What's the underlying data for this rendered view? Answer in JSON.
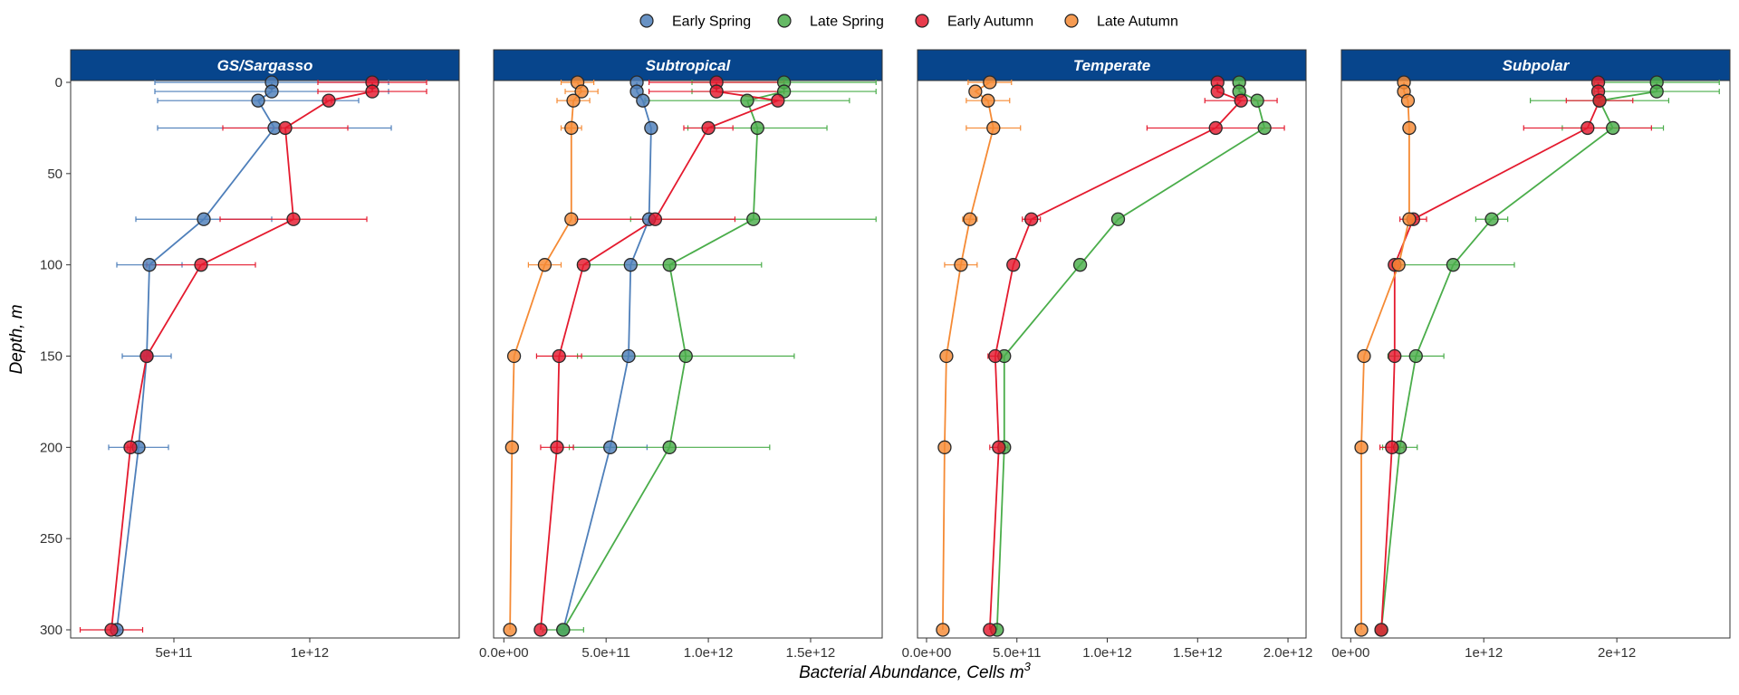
{
  "chart_data": {
    "type": "line",
    "legend_position": "top",
    "xlabel": "Bacterial Abundance, Cells m",
    "xlabel_sup": "3",
    "ylabel": "Depth, m",
    "y_reversed": true,
    "ylim": [
      0,
      300
    ],
    "yticks": [
      0,
      50,
      100,
      150,
      200,
      250,
      300
    ],
    "ytick_labels": [
      "0",
      "50",
      "100",
      "150",
      "200",
      "250",
      "300"
    ],
    "grid": false,
    "legend": [
      {
        "name": "Early Spring",
        "color": "#4e7fba"
      },
      {
        "name": "Late Spring",
        "color": "#4aad4a"
      },
      {
        "name": "Early Autumn",
        "color": "#e41a2e"
      },
      {
        "name": "Late Autumn",
        "color": "#f58a34"
      }
    ],
    "panels": [
      {
        "title": "GS/Sargasso",
        "xlim": [
          120000000000.0,
          1550000000000.0
        ],
        "xticks": [
          500000000000.0,
          1000000000000.0
        ],
        "xtick_labels": [
          "5e+11",
          "1e+12"
        ],
        "series": [
          {
            "name": "Early Spring",
            "points": [
              {
                "x": 860000000000.0,
                "y": 0,
                "err": 430000000000.0
              },
              {
                "x": 860000000000.0,
                "y": 5,
                "err": 430000000000.0
              },
              {
                "x": 810000000000.0,
                "y": 10,
                "err": 370000000000.0
              },
              {
                "x": 870000000000.0,
                "y": 25,
                "err": 430000000000.0
              },
              {
                "x": 610000000000.0,
                "y": 75,
                "err": 250000000000.0
              },
              {
                "x": 410000000000.0,
                "y": 100,
                "err": 120000000000.0
              },
              {
                "x": 400000000000.0,
                "y": 150,
                "err": 90000000000.0
              },
              {
                "x": 370000000000.0,
                "y": 200,
                "err": 110000000000.0
              },
              {
                "x": 290000000000.0,
                "y": 300,
                "err": 10000000000.0
              }
            ]
          },
          {
            "name": "Early Autumn",
            "points": [
              {
                "x": 1230000000000.0,
                "y": 0,
                "err": 200000000000.0
              },
              {
                "x": 1230000000000.0,
                "y": 5,
                "err": 200000000000.0
              },
              {
                "x": 1070000000000.0,
                "y": 10,
                "err": 10000000000.0
              },
              {
                "x": 910000000000.0,
                "y": 25,
                "err": 230000000000.0
              },
              {
                "x": 940000000000.0,
                "y": 75,
                "err": 270000000000.0
              },
              {
                "x": 600000000000.0,
                "y": 100,
                "err": 200000000000.0
              },
              {
                "x": 400000000000.0,
                "y": 150,
                "err": 10000000000.0
              },
              {
                "x": 340000000000.0,
                "y": 200,
                "err": 10000000000.0
              },
              {
                "x": 270000000000.0,
                "y": 300,
                "err": 115000000000.0
              }
            ]
          }
        ]
      },
      {
        "title": "Subtropical",
        "xlim": [
          -50000000000.0,
          1850000000000.0
        ],
        "xticks": [
          0,
          500000000000.0,
          1000000000000.0,
          1500000000000.0
        ],
        "xtick_labels": [
          "0.0e+00",
          "5.0e+11",
          "1.0e+12",
          "1.5e+12"
        ],
        "series": [
          {
            "name": "Early Spring",
            "points": [
              {
                "x": 650000000000.0,
                "y": 0,
                "err": 0
              },
              {
                "x": 650000000000.0,
                "y": 5,
                "err": 0
              },
              {
                "x": 680000000000.0,
                "y": 10,
                "err": 0
              },
              {
                "x": 720000000000.0,
                "y": 25,
                "err": 0
              },
              {
                "x": 710000000000.0,
                "y": 75,
                "err": 0
              },
              {
                "x": 620000000000.0,
                "y": 100,
                "err": 0
              },
              {
                "x": 610000000000.0,
                "y": 150,
                "err": 0
              },
              {
                "x": 520000000000.0,
                "y": 200,
                "err": 180000000000.0
              },
              {
                "x": 290000000000.0,
                "y": 300,
                "err": 0
              }
            ]
          },
          {
            "name": "Late Spring",
            "points": [
              {
                "x": 1370000000000.0,
                "y": 0,
                "err": 450000000000.0
              },
              {
                "x": 1370000000000.0,
                "y": 5,
                "err": 450000000000.0
              },
              {
                "x": 1190000000000.0,
                "y": 10,
                "err": 500000000000.0
              },
              {
                "x": 1240000000000.0,
                "y": 25,
                "err": 340000000000.0
              },
              {
                "x": 1220000000000.0,
                "y": 75,
                "err": 600000000000.0
              },
              {
                "x": 810000000000.0,
                "y": 100,
                "err": 450000000000.0
              },
              {
                "x": 890000000000.0,
                "y": 150,
                "err": 530000000000.0
              },
              {
                "x": 810000000000.0,
                "y": 200,
                "err": 490000000000.0
              },
              {
                "x": 290000000000.0,
                "y": 300,
                "err": 100000000000.0
              }
            ]
          },
          {
            "name": "Early Autumn",
            "points": [
              {
                "x": 1040000000000.0,
                "y": 0,
                "err": 330000000000.0
              },
              {
                "x": 1040000000000.0,
                "y": 5,
                "err": 330000000000.0
              },
              {
                "x": 1340000000000.0,
                "y": 10,
                "err": 0
              },
              {
                "x": 1000000000000.0,
                "y": 25,
                "err": 120000000000.0
              },
              {
                "x": 740000000000.0,
                "y": 75,
                "err": 390000000000.0
              },
              {
                "x": 390000000000.0,
                "y": 100,
                "err": 0
              },
              {
                "x": 270000000000.0,
                "y": 150,
                "err": 110000000000.0
              },
              {
                "x": 260000000000.0,
                "y": 200,
                "err": 80000000000.0
              },
              {
                "x": 180000000000.0,
                "y": 300,
                "err": 0
              }
            ]
          },
          {
            "name": "Late Autumn",
            "points": [
              {
                "x": 360000000000.0,
                "y": 0,
                "err": 80000000000.0
              },
              {
                "x": 380000000000.0,
                "y": 5,
                "err": 80000000000.0
              },
              {
                "x": 340000000000.0,
                "y": 10,
                "err": 80000000000.0
              },
              {
                "x": 330000000000.0,
                "y": 25,
                "err": 50000000000.0
              },
              {
                "x": 330000000000.0,
                "y": 75,
                "err": 0
              },
              {
                "x": 200000000000.0,
                "y": 100,
                "err": 80000000000.0
              },
              {
                "x": 50000000000.0,
                "y": 150,
                "err": 0
              },
              {
                "x": 40000000000.0,
                "y": 200,
                "err": 0
              },
              {
                "x": 30000000000.0,
                "y": 300,
                "err": 0
              }
            ]
          }
        ]
      },
      {
        "title": "Temperate",
        "xlim": [
          -50000000000.0,
          2100000000000.0
        ],
        "xticks": [
          0,
          500000000000.0,
          1000000000000.0,
          1500000000000.0,
          2000000000000.0
        ],
        "xtick_labels": [
          "0.0e+00",
          "5.0e+11",
          "1.0e+12",
          "1.5e+12",
          "2.0e+12"
        ],
        "series": [
          {
            "name": "Late Spring",
            "points": [
              {
                "x": 1730000000000.0,
                "y": 0,
                "err": 0
              },
              {
                "x": 1730000000000.0,
                "y": 5,
                "err": 0
              },
              {
                "x": 1830000000000.0,
                "y": 10,
                "err": 0
              },
              {
                "x": 1870000000000.0,
                "y": 25,
                "err": 0
              },
              {
                "x": 1060000000000.0,
                "y": 75,
                "err": 0
              },
              {
                "x": 850000000000.0,
                "y": 100,
                "err": 0
              },
              {
                "x": 430000000000.0,
                "y": 150,
                "err": 0
              },
              {
                "x": 430000000000.0,
                "y": 200,
                "err": 0
              },
              {
                "x": 390000000000.0,
                "y": 300,
                "err": 0
              }
            ]
          },
          {
            "name": "Early Autumn",
            "points": [
              {
                "x": 1610000000000.0,
                "y": 0,
                "err": 0
              },
              {
                "x": 1610000000000.0,
                "y": 5,
                "err": 0
              },
              {
                "x": 1740000000000.0,
                "y": 10,
                "err": 200000000000.0
              },
              {
                "x": 1600000000000.0,
                "y": 25,
                "err": 380000000000.0
              },
              {
                "x": 580000000000.0,
                "y": 75,
                "err": 50000000000.0
              },
              {
                "x": 480000000000.0,
                "y": 100,
                "err": 0
              },
              {
                "x": 380000000000.0,
                "y": 150,
                "err": 40000000000.0
              },
              {
                "x": 400000000000.0,
                "y": 200,
                "err": 50000000000.0
              },
              {
                "x": 350000000000.0,
                "y": 300,
                "err": 0
              }
            ]
          },
          {
            "name": "Late Autumn",
            "points": [
              {
                "x": 350000000000.0,
                "y": 0,
                "err": 120000000000.0
              },
              {
                "x": 270000000000.0,
                "y": 5,
                "err": 0
              },
              {
                "x": 340000000000.0,
                "y": 10,
                "err": 120000000000.0
              },
              {
                "x": 370000000000.0,
                "y": 25,
                "err": 150000000000.0
              },
              {
                "x": 240000000000.0,
                "y": 75,
                "err": 40000000000.0
              },
              {
                "x": 190000000000.0,
                "y": 100,
                "err": 90000000000.0
              },
              {
                "x": 110000000000.0,
                "y": 150,
                "err": 0
              },
              {
                "x": 100000000000.0,
                "y": 200,
                "err": 0
              },
              {
                "x": 90000000000.0,
                "y": 300,
                "err": 0
              }
            ]
          }
        ]
      },
      {
        "title": "Subpolar",
        "xlim": [
          -70000000000.0,
          2850000000000.0
        ],
        "xticks": [
          0,
          1000000000000.0,
          2000000000000.0
        ],
        "xtick_labels": [
          "0e+00",
          "1e+12",
          "2e+12"
        ],
        "series": [
          {
            "name": "Late Spring",
            "points": [
              {
                "x": 2300000000000.0,
                "y": 0,
                "err": 470000000000.0
              },
              {
                "x": 2300000000000.0,
                "y": 5,
                "err": 470000000000.0
              },
              {
                "x": 1870000000000.0,
                "y": 10,
                "err": 520000000000.0
              },
              {
                "x": 1970000000000.0,
                "y": 25,
                "err": 380000000000.0
              },
              {
                "x": 1060000000000.0,
                "y": 75,
                "err": 120000000000.0
              },
              {
                "x": 770000000000.0,
                "y": 100,
                "err": 460000000000.0
              },
              {
                "x": 490000000000.0,
                "y": 150,
                "err": 210000000000.0
              },
              {
                "x": 370000000000.0,
                "y": 200,
                "err": 130000000000.0
              },
              {
                "x": 230000000000.0,
                "y": 300,
                "err": 0
              }
            ]
          },
          {
            "name": "Early Autumn",
            "points": [
              {
                "x": 1860000000000.0,
                "y": 0,
                "err": 0
              },
              {
                "x": 1860000000000.0,
                "y": 5,
                "err": 0
              },
              {
                "x": 1870000000000.0,
                "y": 10,
                "err": 250000000000.0
              },
              {
                "x": 1780000000000.0,
                "y": 25,
                "err": 480000000000.0
              },
              {
                "x": 470000000000.0,
                "y": 75,
                "err": 100000000000.0
              },
              {
                "x": 330000000000.0,
                "y": 100,
                "err": 0
              },
              {
                "x": 330000000000.0,
                "y": 150,
                "err": 0
              },
              {
                "x": 310000000000.0,
                "y": 200,
                "err": 90000000000.0
              },
              {
                "x": 230000000000.0,
                "y": 300,
                "err": 0
              }
            ]
          },
          {
            "name": "Late Autumn",
            "points": [
              {
                "x": 400000000000.0,
                "y": 0,
                "err": 0
              },
              {
                "x": 400000000000.0,
                "y": 5,
                "err": 0
              },
              {
                "x": 430000000000.0,
                "y": 10,
                "err": 0
              },
              {
                "x": 440000000000.0,
                "y": 25,
                "err": 0
              },
              {
                "x": 440000000000.0,
                "y": 75,
                "err": 0
              },
              {
                "x": 360000000000.0,
                "y": 100,
                "err": 0
              },
              {
                "x": 100000000000.0,
                "y": 150,
                "err": 0
              },
              {
                "x": 80000000000.0,
                "y": 200,
                "err": 0
              },
              {
                "x": 80000000000.0,
                "y": 300,
                "err": 0
              }
            ]
          }
        ]
      }
    ]
  }
}
